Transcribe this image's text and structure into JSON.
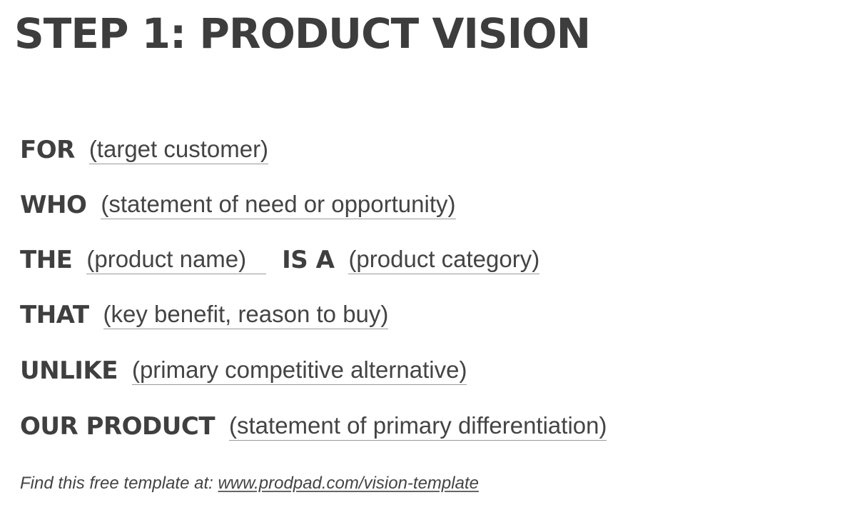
{
  "title": "STEP 1: PRODUCT VISION",
  "rows": [
    {
      "keyword": "FOR",
      "blank": "(target customer)"
    },
    {
      "keyword": "WHO",
      "blank": "(statement of need or opportunity)"
    },
    {
      "keyword": "THE",
      "blank": "(product name)",
      "keyword2": "IS A",
      "blank2": "(product category)"
    },
    {
      "keyword": "THAT",
      "blank": "(key benefit, reason to buy)"
    },
    {
      "keyword": "UNLIKE",
      "blank": "(primary competitive alternative)"
    },
    {
      "keyword": "OUR PRODUCT",
      "blank": "(statement of primary differentiation)"
    }
  ],
  "footer": {
    "prefix": "Find this free template at: ",
    "link": "www.prodpad.com/vision-template"
  }
}
